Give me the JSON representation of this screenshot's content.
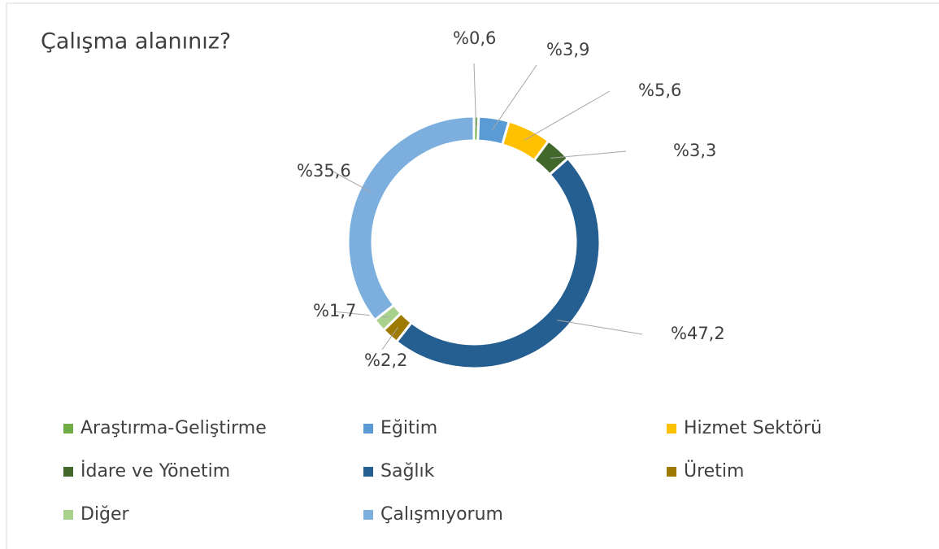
{
  "chart_data": {
    "type": "donut",
    "title": "Çalışma alanınız?",
    "categories": [
      "Araştırma-Geliştirme",
      "Eğitim",
      "Hizmet Sektörü",
      "İdare ve Yönetim",
      "Sağlık",
      "Üretim",
      "Diğer",
      "Çalışmıyorum"
    ],
    "values": [
      0.6,
      3.9,
      5.6,
      3.3,
      47.2,
      2.2,
      1.7,
      35.6
    ],
    "value_labels": [
      "%0,6",
      "%3,9",
      "%5,6",
      "%3,3",
      "%47,2",
      "%2,2",
      "%1,7",
      "%35,6"
    ],
    "colors": [
      "#70ad47",
      "#5b9bd5",
      "#ffc000",
      "#43682b",
      "#255e91",
      "#9e7a00",
      "#a9d18e",
      "#7cafdd"
    ],
    "legend": "bottom"
  }
}
